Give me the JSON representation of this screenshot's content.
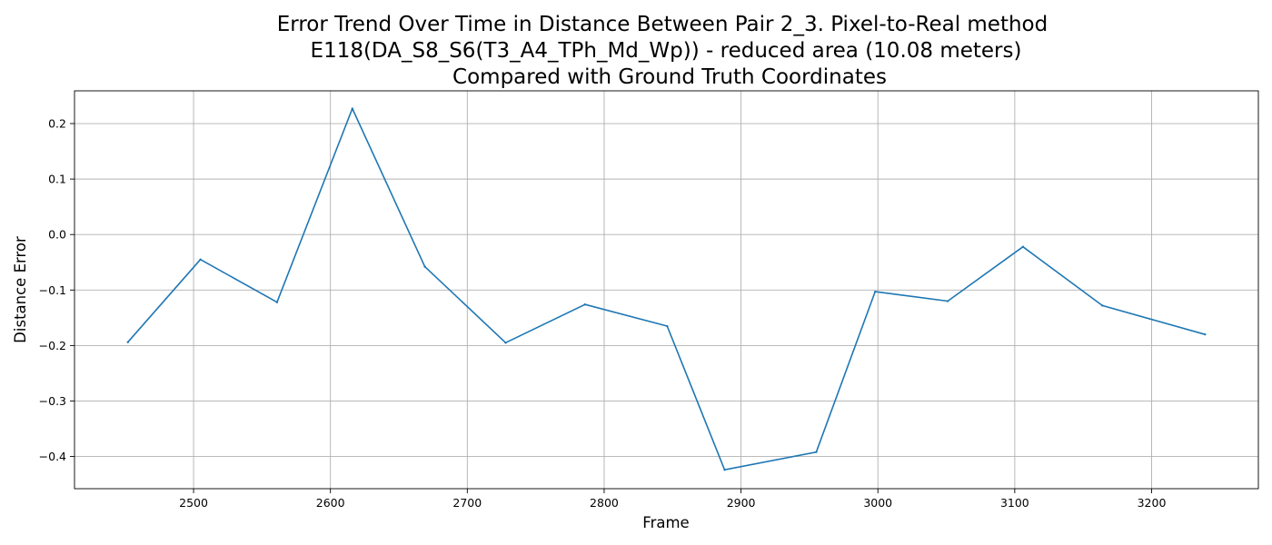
{
  "chart_data": {
    "type": "line",
    "title": [
      "Error Trend Over Time in Distance Between Pair 2_3. Pixel-to-Real method",
      "E118(DA_S8_S6(T3_A4_TPh_Md_Wp)) - reduced area (10.08 meters)",
      "Compared with Ground Truth Coordinates"
    ],
    "xlabel": "Frame",
    "ylabel": "Distance Error",
    "xlim": [
      2413,
      3278
    ],
    "ylim": [
      -0.458,
      0.259
    ],
    "xticks": [
      2500,
      2600,
      2700,
      2800,
      2900,
      3000,
      3100,
      3200
    ],
    "yticks": [
      0.2,
      0.1,
      0.0,
      -0.1,
      -0.2,
      -0.3,
      -0.4
    ],
    "ytick_labels": [
      "0.2",
      "0.1",
      "0.0",
      "−0.1",
      "−0.2",
      "−0.3",
      "−0.4"
    ],
    "grid": true,
    "series": [
      {
        "color": "#1f77b4",
        "x": [
          2452,
          2505,
          2561,
          2616,
          2669,
          2728,
          2786,
          2846,
          2888,
          2955,
          2998,
          3051,
          3106,
          3164,
          3239
        ],
        "y": [
          -0.194,
          -0.045,
          -0.122,
          0.227,
          -0.058,
          -0.195,
          -0.126,
          -0.165,
          -0.424,
          -0.392,
          -0.103,
          -0.12,
          -0.022,
          -0.128,
          -0.18
        ]
      }
    ]
  }
}
